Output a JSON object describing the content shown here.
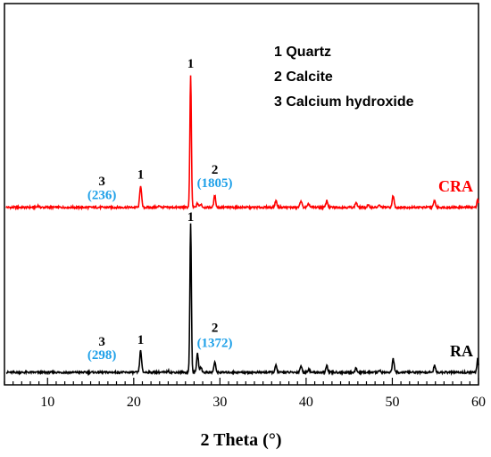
{
  "chart_data": {
    "type": "line",
    "title": "",
    "xlabel": "2 Theta (°)",
    "ylabel": "",
    "xlim": [
      5,
      60
    ],
    "x_ticks": [
      10,
      20,
      30,
      40,
      50,
      60
    ],
    "y_ticks_shown": false,
    "grid": false,
    "legend_lines": [
      "1 Quartz",
      "2 Calcite",
      "3 Calcium hydroxide"
    ],
    "legend_placement": "top-right",
    "series": [
      {
        "name": "CRA",
        "color": "#ff0000",
        "baseline": 0.49,
        "peaks": [
          {
            "x": 8.9,
            "h": 0.005,
            "w": 0.15
          },
          {
            "x": 20.8,
            "h": 0.065,
            "w": 0.15
          },
          {
            "x": 23.0,
            "h": 0.005,
            "w": 0.15
          },
          {
            "x": 26.6,
            "h": 0.39,
            "w": 0.12
          },
          {
            "x": 27.4,
            "h": 0.012,
            "w": 0.15
          },
          {
            "x": 27.8,
            "h": 0.01,
            "w": 0.15
          },
          {
            "x": 29.4,
            "h": 0.035,
            "w": 0.15
          },
          {
            "x": 36.5,
            "h": 0.02,
            "w": 0.15
          },
          {
            "x": 39.4,
            "h": 0.02,
            "w": 0.15
          },
          {
            "x": 40.3,
            "h": 0.01,
            "w": 0.15
          },
          {
            "x": 42.4,
            "h": 0.02,
            "w": 0.15
          },
          {
            "x": 45.8,
            "h": 0.015,
            "w": 0.15
          },
          {
            "x": 47.2,
            "h": 0.006,
            "w": 0.15
          },
          {
            "x": 48.5,
            "h": 0.006,
            "w": 0.15
          },
          {
            "x": 50.1,
            "h": 0.035,
            "w": 0.15
          },
          {
            "x": 54.9,
            "h": 0.02,
            "w": 0.15
          },
          {
            "x": 59.9,
            "h": 0.025,
            "w": 0.12
          }
        ]
      },
      {
        "name": "RA",
        "color": "#000000",
        "baseline": 0.0,
        "peaks": [
          {
            "x": 20.8,
            "h": 0.065,
            "w": 0.15
          },
          {
            "x": 24.0,
            "h": 0.004,
            "w": 0.15
          },
          {
            "x": 26.6,
            "h": 0.44,
            "w": 0.12
          },
          {
            "x": 27.4,
            "h": 0.055,
            "w": 0.15
          },
          {
            "x": 27.8,
            "h": 0.015,
            "w": 0.15
          },
          {
            "x": 29.4,
            "h": 0.03,
            "w": 0.15
          },
          {
            "x": 36.5,
            "h": 0.02,
            "w": 0.15
          },
          {
            "x": 39.4,
            "h": 0.02,
            "w": 0.15
          },
          {
            "x": 40.3,
            "h": 0.01,
            "w": 0.15
          },
          {
            "x": 42.4,
            "h": 0.02,
            "w": 0.15
          },
          {
            "x": 45.8,
            "h": 0.012,
            "w": 0.15
          },
          {
            "x": 48.5,
            "h": 0.006,
            "w": 0.15
          },
          {
            "x": 50.1,
            "h": 0.04,
            "w": 0.15
          },
          {
            "x": 54.9,
            "h": 0.02,
            "w": 0.15
          },
          {
            "x": 59.9,
            "h": 0.04,
            "w": 0.12
          }
        ]
      }
    ],
    "annotations": [
      {
        "text": "1",
        "x": 26.6,
        "y": 0.905,
        "color": "#000000"
      },
      {
        "text": "1",
        "x": 20.8,
        "y": 0.575,
        "color": "#000000"
      },
      {
        "text": "3",
        "x": 16.3,
        "y": 0.555,
        "color": "#000000"
      },
      {
        "text": "(236)",
        "x": 16.3,
        "y": 0.515,
        "color": "#1ea0e8"
      },
      {
        "text": "2",
        "x": 29.4,
        "y": 0.59,
        "color": "#000000"
      },
      {
        "text": "(1805)",
        "x": 29.4,
        "y": 0.55,
        "color": "#1ea0e8"
      },
      {
        "text": "1",
        "x": 26.6,
        "y": 0.45,
        "color": "#000000"
      },
      {
        "text": "1",
        "x": 20.8,
        "y": 0.085,
        "color": "#000000"
      },
      {
        "text": "3",
        "x": 16.3,
        "y": 0.08,
        "color": "#000000"
      },
      {
        "text": "(298)",
        "x": 16.3,
        "y": 0.04,
        "color": "#1ea0e8"
      },
      {
        "text": "2",
        "x": 29.4,
        "y": 0.12,
        "color": "#000000"
      },
      {
        "text": "(1372)",
        "x": 29.4,
        "y": 0.075,
        "color": "#1ea0e8"
      }
    ]
  }
}
